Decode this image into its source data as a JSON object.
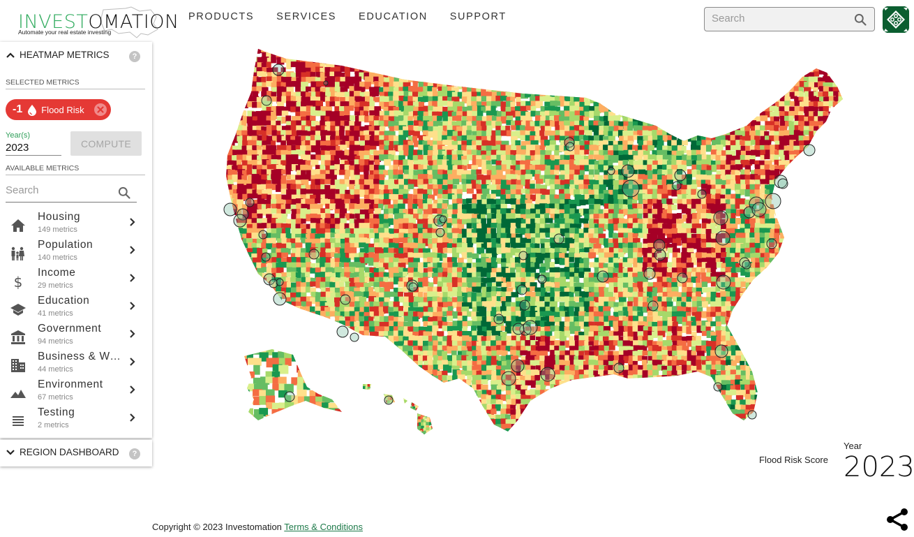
{
  "brand": {
    "logo_part1": "INVEST",
    "logo_part2": "OMATION",
    "tagline": "Automate your real estate investing"
  },
  "nav": {
    "items": [
      {
        "label": "PRODUCTS"
      },
      {
        "label": "SERVICES"
      },
      {
        "label": "EDUCATION"
      },
      {
        "label": "SUPPORT"
      }
    ]
  },
  "header": {
    "search_placeholder": "Search",
    "avatar_icon": "user-avatar-pattern-icon"
  },
  "colors": {
    "brand_green": "#2eaa5c",
    "chip_red": "#e53935",
    "avatar_green": "#0b5e30",
    "link_green": "#1e7a4a",
    "scale": [
      "#a50026",
      "#d73027",
      "#f46d43",
      "#fdae61",
      "#fee08b",
      "#d9ef8b",
      "#a6d96a",
      "#66bd63",
      "#1a9850",
      "#006837"
    ]
  },
  "heatmap_panel": {
    "title": "HEATMAP METRICS",
    "help": "?",
    "selected_label": "SELECTED METRICS",
    "selected_metrics": [
      {
        "weight": "-1",
        "icon": "water-drop-icon",
        "label": "Flood Risk"
      }
    ],
    "year_label": "Year(s)",
    "year_value": "2023",
    "compute_label": "COMPUTE",
    "available_label": "AVAILABLE METRICS",
    "search_placeholder": "Search",
    "categories": [
      {
        "name": "Housing",
        "count": "149 metrics",
        "icon": "home-icon"
      },
      {
        "name": "Population",
        "count": "140 metrics",
        "icon": "family-icon"
      },
      {
        "name": "Income",
        "count": "29 metrics",
        "icon": "dollar-icon"
      },
      {
        "name": "Education",
        "count": "41 metrics",
        "icon": "graduation-cap-icon"
      },
      {
        "name": "Government",
        "count": "94 metrics",
        "icon": "bank-icon"
      },
      {
        "name": "Business & Wo...",
        "count": "44 metrics",
        "icon": "building-icon"
      },
      {
        "name": "Environment",
        "count": "67 metrics",
        "icon": "mountain-icon"
      },
      {
        "name": "Testing",
        "count": "2 metrics",
        "icon": "list-icon"
      }
    ]
  },
  "region_panel": {
    "title": "REGION DASHBOARD",
    "help": "?"
  },
  "map": {
    "legend_label": "Flood Risk Score",
    "year_caption": "Year",
    "year_value": "2023"
  },
  "footer": {
    "copyright": "Copyright © 2023 Investomation ",
    "terms": "Terms & Conditions"
  }
}
